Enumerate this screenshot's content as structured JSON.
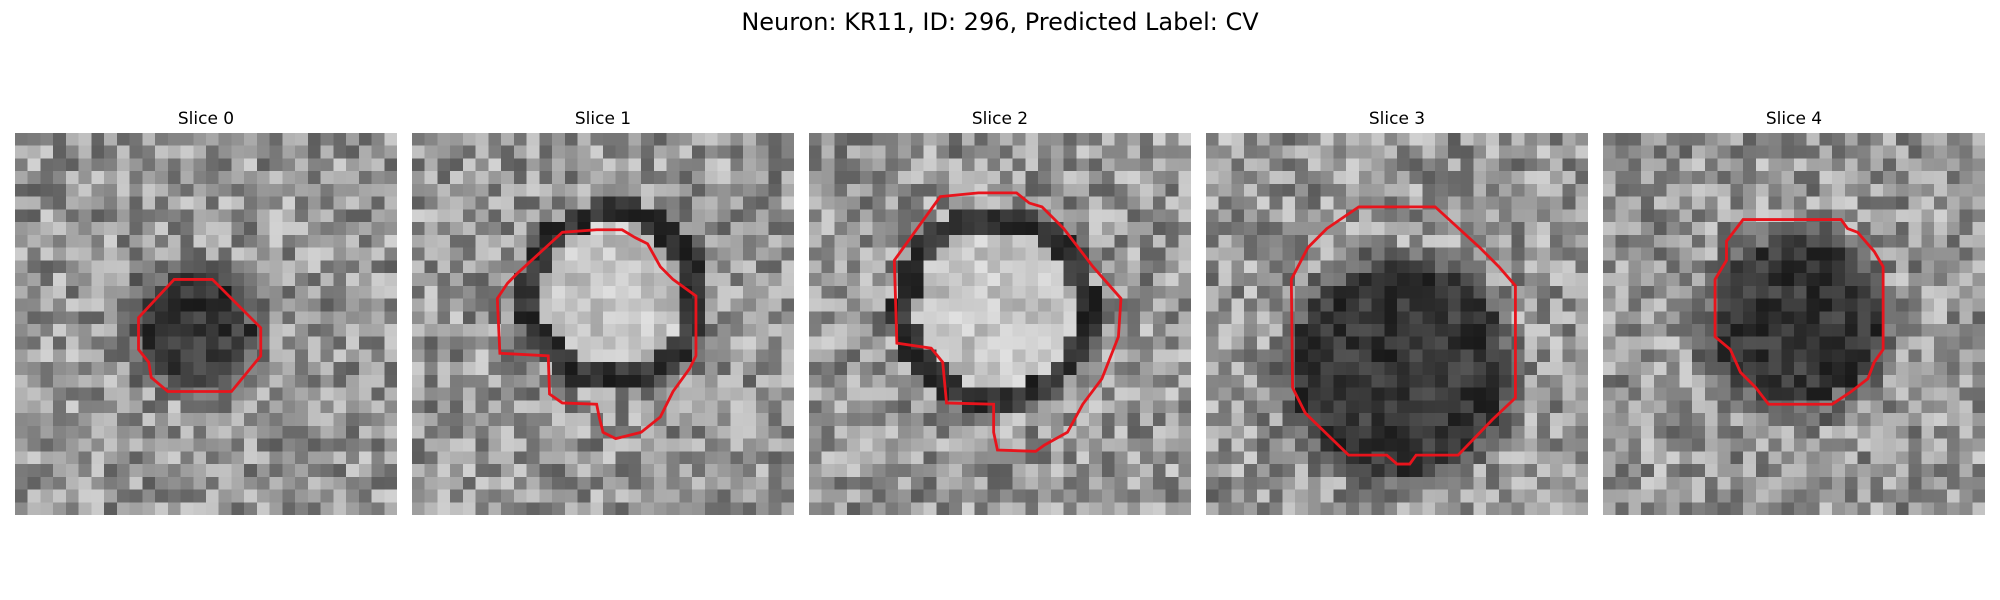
{
  "figure": {
    "title": "Neuron: KR11, ID: 296, Predicted Label: CV",
    "grid_size": 30,
    "outline_color": "#e8141c",
    "panels": [
      {
        "title": "Slice 0",
        "content": "blob",
        "blob": {
          "cx": 14.0,
          "cy": 15.5,
          "r": 4.6,
          "type": "dark",
          "seed": 11
        }
      },
      {
        "title": "Slice 1",
        "content": "blob",
        "blob": {
          "cx": 15.8,
          "cy": 12.8,
          "r": 5.6,
          "type": "bright",
          "seed": 23
        }
      },
      {
        "title": "Slice 2",
        "content": "blob",
        "blob": {
          "cx": 14.6,
          "cy": 13.8,
          "r": 6.2,
          "type": "bright",
          "seed": 37
        }
      },
      {
        "title": "Slice 3",
        "content": "blob",
        "blob": {
          "cx": 15.2,
          "cy": 18.6,
          "r": 8.5,
          "type": "dark",
          "seed": 41
        }
      },
      {
        "title": "Slice 4",
        "content": "blob",
        "blob": {
          "cx": 15.1,
          "cy": 14.8,
          "r": 6.6,
          "type": "dark",
          "seed": 53
        }
      }
    ]
  }
}
